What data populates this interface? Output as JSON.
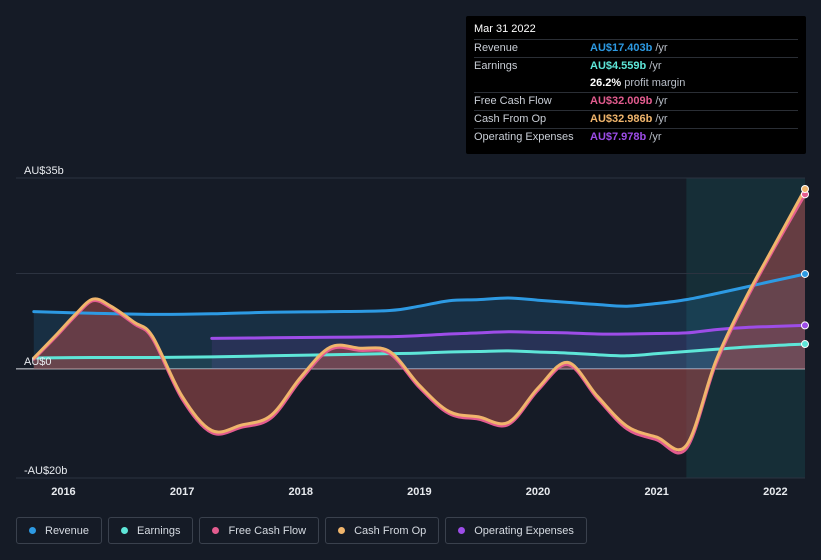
{
  "tooltip": {
    "date": "Mar 31 2022",
    "rows": [
      {
        "label": "Revenue",
        "value": "AU$17.403b",
        "unit": "/yr",
        "color": "#2d9ae3"
      },
      {
        "label": "Earnings",
        "value": "AU$4.559b",
        "unit": "/yr",
        "color": "#5ee6d8"
      },
      {
        "label": "",
        "value": "26.2%",
        "unit": "profit margin",
        "color": "#ffffff"
      },
      {
        "label": "Free Cash Flow",
        "value": "AU$32.009b",
        "unit": "/yr",
        "color": "#e35c8f"
      },
      {
        "label": "Cash From Op",
        "value": "AU$32.986b",
        "unit": "/yr",
        "color": "#f0b56c"
      },
      {
        "label": "Operating Expenses",
        "value": "AU$7.978b",
        "unit": "/yr",
        "color": "#9d4de8"
      }
    ]
  },
  "legend": [
    {
      "label": "Revenue",
      "color": "#2d9ae3"
    },
    {
      "label": "Earnings",
      "color": "#5ee6d8"
    },
    {
      "label": "Free Cash Flow",
      "color": "#e35c8f"
    },
    {
      "label": "Cash From Op",
      "color": "#f0b56c"
    },
    {
      "label": "Operating Expenses",
      "color": "#9d4de8"
    }
  ],
  "chart_data": {
    "type": "area",
    "title": "",
    "y_axis_labels": [
      "AU$35b",
      "AU$0",
      "-AU$20b"
    ],
    "ylim": [
      -20,
      35
    ],
    "x_tick_labels": [
      "2016",
      "2017",
      "2018",
      "2019",
      "2020",
      "2021",
      "2022"
    ],
    "x_tick_values": [
      2016,
      2017,
      2018,
      2019,
      2020,
      2021,
      2022
    ],
    "xlim": [
      2015.6,
      2022.25
    ],
    "forecast_start": 2021.25,
    "series": [
      {
        "name": "Revenue",
        "color": "#2d9ae3",
        "x": [
          2015.75,
          2016.25,
          2016.75,
          2017.25,
          2017.75,
          2018.25,
          2018.75,
          2019.0,
          2019.25,
          2019.5,
          2019.75,
          2020.0,
          2020.25,
          2020.5,
          2020.75,
          2021.0,
          2021.25,
          2021.5,
          2021.75,
          2022.0,
          2022.25
        ],
        "y": [
          10.5,
          10.2,
          10.0,
          10.1,
          10.4,
          10.5,
          10.7,
          11.5,
          12.5,
          12.7,
          13.0,
          12.6,
          12.2,
          11.8,
          11.5,
          12.0,
          12.7,
          13.8,
          15.0,
          16.2,
          17.403
        ]
      },
      {
        "name": "Earnings",
        "color": "#5ee6d8",
        "x": [
          2015.75,
          2016.25,
          2016.75,
          2017.25,
          2017.75,
          2018.25,
          2018.75,
          2019.0,
          2019.25,
          2019.5,
          2019.75,
          2020.0,
          2020.25,
          2020.5,
          2020.75,
          2021.0,
          2021.25,
          2021.5,
          2021.75,
          2022.0,
          2022.25
        ],
        "y": [
          2.0,
          2.1,
          2.1,
          2.2,
          2.4,
          2.6,
          2.8,
          2.9,
          3.1,
          3.2,
          3.3,
          3.1,
          2.9,
          2.6,
          2.4,
          2.8,
          3.2,
          3.6,
          4.0,
          4.3,
          4.559
        ]
      },
      {
        "name": "Operating Expenses",
        "color": "#9d4de8",
        "x": [
          2017.25,
          2017.75,
          2018.25,
          2018.75,
          2019.0,
          2019.25,
          2019.5,
          2019.75,
          2020.0,
          2020.25,
          2020.5,
          2020.75,
          2021.0,
          2021.25,
          2021.5,
          2021.75,
          2022.0,
          2022.25
        ],
        "y": [
          5.6,
          5.7,
          5.8,
          5.9,
          6.1,
          6.4,
          6.6,
          6.8,
          6.7,
          6.6,
          6.4,
          6.4,
          6.5,
          6.6,
          7.2,
          7.6,
          7.8,
          7.978
        ]
      },
      {
        "name": "Cash From Op",
        "color": "#f0b56c",
        "x": [
          2015.75,
          2015.95,
          2016.1,
          2016.25,
          2016.4,
          2016.6,
          2016.75,
          2017.0,
          2017.25,
          2017.5,
          2017.75,
          2018.0,
          2018.25,
          2018.5,
          2018.75,
          2019.0,
          2019.25,
          2019.5,
          2019.75,
          2020.0,
          2020.25,
          2020.5,
          2020.75,
          2021.0,
          2021.25,
          2021.5,
          2021.75,
          2022.0,
          2022.25
        ],
        "y": [
          2.0,
          6.5,
          10.0,
          12.8,
          11.5,
          8.5,
          6.0,
          -5.0,
          -11.3,
          -10.3,
          -8.5,
          -1.5,
          4.0,
          3.8,
          3.2,
          -3.0,
          -7.8,
          -8.8,
          -9.8,
          -3.5,
          1.2,
          -5.0,
          -10.5,
          -12.5,
          -14.0,
          1.5,
          13.0,
          23.0,
          32.986
        ]
      },
      {
        "name": "Free Cash Flow",
        "color": "#e35c8f",
        "x": [
          2015.75,
          2015.95,
          2016.1,
          2016.25,
          2016.4,
          2016.6,
          2016.75,
          2017.0,
          2017.25,
          2017.5,
          2017.75,
          2018.0,
          2018.25,
          2018.5,
          2018.75,
          2019.0,
          2019.25,
          2019.5,
          2019.75,
          2020.0,
          2020.25,
          2020.5,
          2020.75,
          2021.0,
          2021.25,
          2021.5,
          2021.75,
          2022.0,
          2022.25
        ],
        "y": [
          1.8,
          6.2,
          9.7,
          12.5,
          11.2,
          8.2,
          5.6,
          -5.5,
          -11.7,
          -10.7,
          -9.0,
          -2.0,
          3.6,
          3.4,
          2.8,
          -3.4,
          -8.2,
          -9.2,
          -10.2,
          -3.9,
          0.8,
          -5.4,
          -11.0,
          -13.0,
          -14.6,
          1.0,
          12.5,
          22.5,
          32.009
        ]
      }
    ]
  }
}
